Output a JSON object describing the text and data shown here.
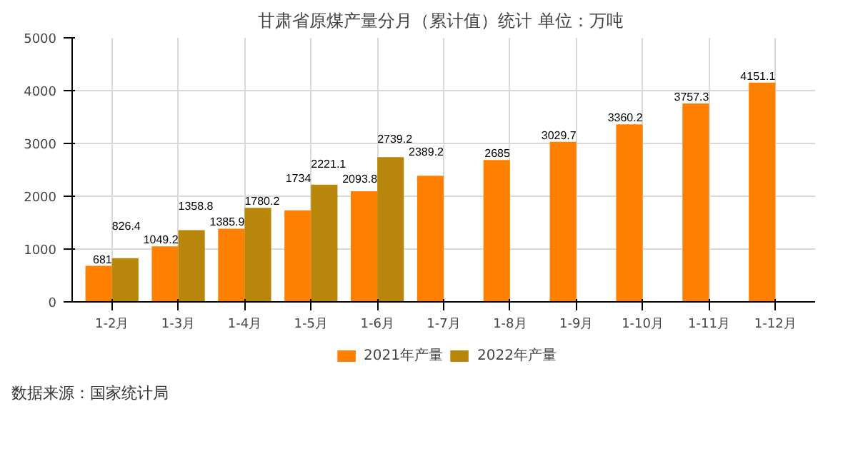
{
  "chart_data": {
    "type": "bar",
    "title": "甘肃省原煤产量分月（累计值）统计  单位：万吨",
    "categories": [
      "1-2月",
      "1-3月",
      "1-4月",
      "1-5月",
      "1-6月",
      "1-7月",
      "1-8月",
      "1-9月",
      "1-10月",
      "1-11月",
      "1-12月"
    ],
    "series": [
      {
        "name": "2021年产量",
        "color": "#ff8000",
        "values": [
          681,
          1049.2,
          1385.9,
          1734,
          2093.8,
          2389.2,
          2685,
          3029.7,
          3360.2,
          3757.3,
          4151.1
        ]
      },
      {
        "name": "2022年产量",
        "color": "#b8860b",
        "values": [
          826.4,
          1358.8,
          1780.2,
          2221.1,
          2739.2,
          null,
          null,
          null,
          null,
          null,
          null
        ]
      }
    ],
    "ylim": [
      0,
      5000
    ],
    "yticks": [
      0,
      1000,
      2000,
      3000,
      4000,
      5000
    ],
    "grid": true,
    "data_labels": true,
    "legend": "bottom",
    "annotations": [
      "数据来源：国家统计局"
    ]
  }
}
